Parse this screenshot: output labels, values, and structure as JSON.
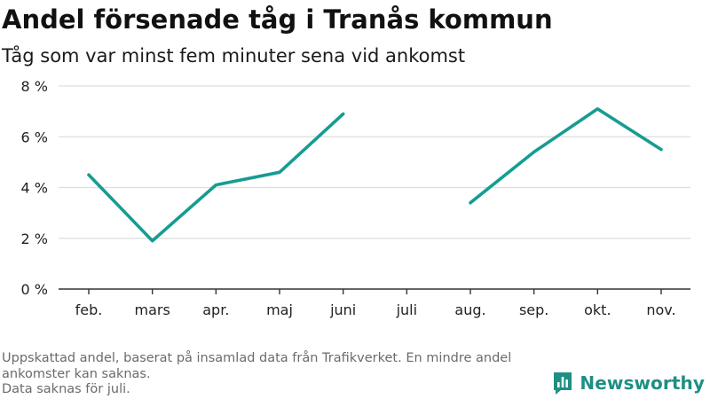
{
  "title": "Andel försenade tåg i Tranås kommun",
  "subtitle": "Tåg som var minst fem minuter sena vid ankomst",
  "footer": {
    "note_line1": "Uppskattad andel, baserat på insamlad data från Trafikverket. En mindre andel",
    "note_line2": "ankomster kan saknas.",
    "note_line3": "Data saknas för juli."
  },
  "brand": {
    "name": "Newsworthy",
    "icon": "newsworthy-logo-icon",
    "color": "#1f8f84"
  },
  "chart_data": {
    "type": "line",
    "categories": [
      "feb.",
      "mars",
      "apr.",
      "maj",
      "juni",
      "juli",
      "aug.",
      "sep.",
      "okt.",
      "nov."
    ],
    "series": [
      {
        "values": [
          4.5,
          1.9,
          4.1,
          4.6,
          6.9,
          null,
          3.4,
          5.4,
          7.1,
          5.5
        ]
      }
    ],
    "yticks": [
      "0 %",
      "2 %",
      "4 %",
      "6 %",
      "8 %"
    ],
    "ytick_values": [
      0,
      2,
      4,
      6,
      8
    ],
    "ylim": [
      0,
      8
    ],
    "grid": true,
    "colors": {
      "line": "#179c91",
      "grid": "#dddddd",
      "axis": "#333333",
      "tick_text": "#222222"
    }
  }
}
